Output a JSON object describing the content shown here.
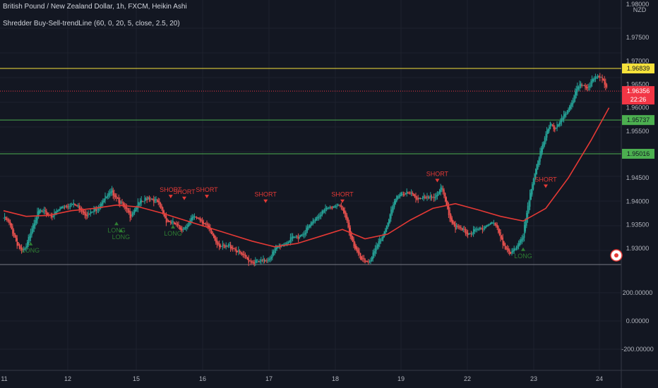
{
  "header": {
    "title": "British Pound / New Zealand Dollar, 1h, FXCM, Heikin Ashi",
    "indicator": "Shredder Buy-Sell-trendLine (60, 0, 20, 5, close, 2.5, 20)"
  },
  "price_axis": {
    "unit": "NZD",
    "top_label": "1.98000",
    "ticks": [
      "1.97500",
      "1.97000",
      "1.96500",
      "1.96000",
      "1.95500",
      "1.95000",
      "1.94500",
      "1.94000",
      "1.93500",
      "1.93000"
    ],
    "current_price": "1.96356",
    "countdown": "22:26",
    "levels": [
      {
        "price": "1.96839",
        "color": "#f5e13b"
      },
      {
        "price": "1.95737",
        "color": "#4caf50"
      },
      {
        "price": "1.95016",
        "color": "#4caf50"
      }
    ]
  },
  "indicator_axis": {
    "ticks": [
      "200.00000",
      "0.00000",
      "-200.00000"
    ]
  },
  "time_axis": {
    "ticks": [
      "11",
      "12",
      "15",
      "16",
      "17",
      "18",
      "19",
      "22",
      "23",
      "24"
    ]
  },
  "signals": {
    "short_label": "SHORT",
    "long_label": "LONG",
    "short_count": 7,
    "long_count": 5
  },
  "colors": {
    "background": "#131722",
    "up": "#26a69a",
    "down": "#ef5350",
    "trend_line": "#e53935",
    "short_signal": "#e53935",
    "long_signal": "#2e7d32",
    "yellow_level": "#f5e13b",
    "green_level": "#4caf50",
    "current_price": "#f23645"
  },
  "chart_data": {
    "type": "candlestick",
    "style": "Heikin Ashi",
    "series": [
      {
        "name": "",
        "values": [
          [
            0,
            1.9365
          ],
          [
            4,
            1.9355
          ],
          [
            8,
            1.9335
          ],
          [
            12,
            1.931
          ],
          [
            16,
            1.929
          ],
          [
            20,
            1.93
          ],
          [
            24,
            1.934
          ],
          [
            28,
            1.9365
          ],
          [
            32,
            1.938
          ],
          [
            36,
            1.9375
          ],
          [
            40,
            1.9372
          ],
          [
            44,
            1.937
          ],
          [
            48,
            1.938
          ],
          [
            52,
            1.939
          ],
          [
            56,
            1.9392
          ],
          [
            60,
            1.9395
          ],
          [
            64,
            1.939
          ],
          [
            68,
            1.9385
          ],
          [
            72,
            1.9375
          ],
          [
            76,
            1.9372
          ],
          [
            80,
            1.938
          ],
          [
            84,
            1.939
          ],
          [
            88,
            1.9405
          ],
          [
            92,
            1.941
          ],
          [
            96,
            1.942
          ],
          [
            100,
            1.941
          ],
          [
            104,
            1.9395
          ],
          [
            108,
            1.938
          ],
          [
            112,
            1.937
          ],
          [
            116,
            1.9385
          ],
          [
            120,
            1.9395
          ],
          [
            124,
            1.94
          ],
          [
            128,
            1.941
          ],
          [
            132,
            1.9405
          ],
          [
            136,
            1.9398
          ],
          [
            140,
            1.938
          ],
          [
            144,
            1.936
          ],
          [
            148,
            1.9355
          ],
          [
            152,
            1.935
          ],
          [
            156,
            1.934
          ],
          [
            160,
            1.9345
          ],
          [
            164,
            1.9355
          ],
          [
            168,
            1.9365
          ],
          [
            172,
            1.9365
          ],
          [
            176,
            1.9358
          ],
          [
            180,
            1.9345
          ],
          [
            184,
            1.933
          ],
          [
            188,
            1.9315
          ],
          [
            192,
            1.9305
          ],
          [
            196,
            1.93
          ],
          [
            200,
            1.9305
          ],
          [
            204,
            1.93
          ],
          [
            208,
            1.929
          ],
          [
            212,
            1.9282
          ],
          [
            216,
            1.9275
          ],
          [
            220,
            1.9272
          ],
          [
            224,
            1.927
          ],
          [
            228,
            1.927
          ],
          [
            232,
            1.9275
          ],
          [
            236,
            1.9282
          ],
          [
            240,
            1.9295
          ],
          [
            244,
            1.9305
          ],
          [
            248,
            1.931
          ],
          [
            252,
            1.9315
          ],
          [
            256,
            1.932
          ],
          [
            260,
            1.9325
          ],
          [
            264,
            1.933
          ],
          [
            268,
            1.934
          ],
          [
            272,
            1.935
          ],
          [
            276,
            1.9365
          ],
          [
            280,
            1.9375
          ],
          [
            284,
            1.938
          ],
          [
            288,
            1.9385
          ],
          [
            292,
            1.939
          ],
          [
            296,
            1.9395
          ],
          [
            300,
            1.938
          ],
          [
            304,
            1.9355
          ],
          [
            308,
            1.932
          ],
          [
            312,
            1.9295
          ],
          [
            316,
            1.9275
          ],
          [
            320,
            1.927
          ],
          [
            324,
            1.9275
          ],
          [
            328,
            1.929
          ],
          [
            332,
            1.931
          ],
          [
            336,
            1.933
          ],
          [
            340,
            1.9355
          ],
          [
            344,
            1.9385
          ],
          [
            348,
            1.941
          ],
          [
            352,
            1.942
          ],
          [
            356,
            1.9418
          ],
          [
            360,
            1.9415
          ],
          [
            364,
            1.941
          ],
          [
            368,
            1.9408
          ],
          [
            372,
            1.9406
          ],
          [
            376,
            1.9405
          ],
          [
            380,
            1.941
          ],
          [
            384,
            1.942
          ],
          [
            388,
            1.9425
          ],
          [
            392,
            1.939
          ],
          [
            396,
            1.936
          ],
          [
            400,
            1.9345
          ],
          [
            404,
            1.934
          ],
          [
            408,
            1.9335
          ],
          [
            412,
            1.9332
          ],
          [
            416,
            1.9335
          ],
          [
            420,
            1.9338
          ],
          [
            424,
            1.9345
          ],
          [
            428,
            1.935
          ],
          [
            432,
            1.9355
          ],
          [
            436,
            1.9345
          ],
          [
            440,
            1.9325
          ],
          [
            444,
            1.93
          ],
          [
            448,
            1.9285
          ],
          [
            452,
            1.9295
          ],
          [
            456,
            1.9315
          ],
          [
            460,
            1.933
          ],
          [
            464,
            1.9385
          ],
          [
            468,
            1.944
          ],
          [
            472,
            1.948
          ],
          [
            476,
            1.951
          ],
          [
            480,
            1.954
          ],
          [
            484,
            1.957
          ],
          [
            488,
            1.9555
          ],
          [
            492,
            1.9565
          ],
          [
            496,
            1.958
          ],
          [
            500,
            1.96
          ],
          [
            504,
            1.962
          ],
          [
            508,
            1.964
          ],
          [
            512,
            1.965
          ],
          [
            516,
            1.9645
          ],
          [
            520,
            1.9655
          ],
          [
            524,
            1.9662
          ],
          [
            528,
            1.967
          ],
          [
            532,
            1.9655
          ],
          [
            536,
            1.9636
          ]
        ]
      }
    ],
    "moving_average": [
      [
        0,
        1.938
      ],
      [
        20,
        1.9368
      ],
      [
        40,
        1.937
      ],
      [
        60,
        1.938
      ],
      [
        80,
        1.9385
      ],
      [
        100,
        1.9392
      ],
      [
        120,
        1.9388
      ],
      [
        140,
        1.9375
      ],
      [
        160,
        1.936
      ],
      [
        180,
        1.9345
      ],
      [
        200,
        1.933
      ],
      [
        220,
        1.9315
      ],
      [
        240,
        1.9303
      ],
      [
        260,
        1.931
      ],
      [
        280,
        1.9325
      ],
      [
        300,
        1.934
      ],
      [
        320,
        1.932
      ],
      [
        340,
        1.933
      ],
      [
        360,
        1.936
      ],
      [
        380,
        1.9385
      ],
      [
        400,
        1.9395
      ],
      [
        420,
        1.9382
      ],
      [
        440,
        1.9368
      ],
      [
        460,
        1.9358
      ],
      [
        480,
        1.9385
      ],
      [
        500,
        1.945
      ],
      [
        520,
        1.953
      ],
      [
        536,
        1.96
      ]
    ],
    "ylim": [
      1.9265,
      1.98
    ],
    "xlabel": "",
    "ylabel": ""
  }
}
